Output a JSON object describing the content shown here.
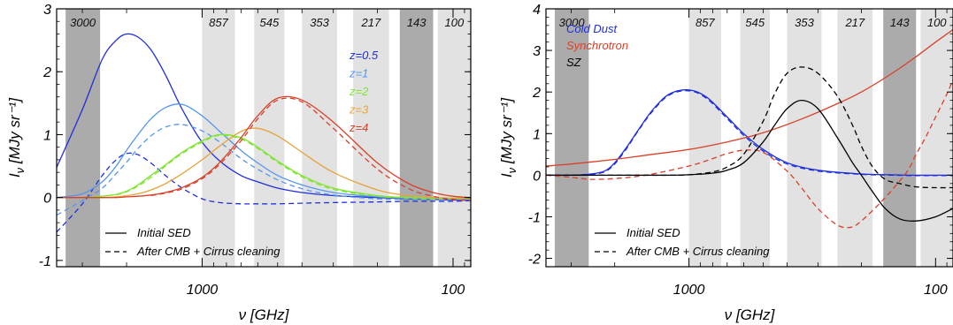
{
  "figure": {
    "band_labels": [
      "3000",
      "857",
      "545",
      "353",
      "217",
      "143",
      "100"
    ],
    "band_shading": [
      "dark",
      "light",
      "light",
      "light",
      "light",
      "dark",
      "light"
    ],
    "colors": {
      "dark_band": "#ababab",
      "light_band": "#e2e2e2"
    }
  },
  "chart_data": [
    {
      "type": "line",
      "x_scale": "log-reversed",
      "xlim": [
        3800,
        85
      ],
      "ylim": [
        -1.1,
        3.0
      ],
      "xlabel": "ν [GHz]",
      "ylabel": "I_ν [MJy sr⁻¹]",
      "xticks": [
        {
          "x": 1000,
          "label": "1000"
        },
        {
          "x": 100,
          "label": "100"
        }
      ],
      "yticks": [
        {
          "y": -1,
          "label": "-1"
        },
        {
          "y": 0,
          "label": "0"
        },
        {
          "y": 1,
          "label": "1"
        },
        {
          "y": 2,
          "label": "2"
        },
        {
          "y": 3,
          "label": "3"
        }
      ],
      "bands": [
        {
          "label": "3000",
          "from": 3500,
          "to": 2550
        },
        {
          "label": "857",
          "from": 1000,
          "to": 740
        },
        {
          "label": "545",
          "from": 620,
          "to": 470
        },
        {
          "label": "353",
          "from": 400,
          "to": 290
        },
        {
          "label": "217",
          "from": 250,
          "to": 180
        },
        {
          "label": "143",
          "from": 163,
          "to": 120
        },
        {
          "label": "100",
          "from": 115,
          "to": 85
        }
      ],
      "legend_style": {
        "solid": "Initial SED",
        "dashed": "After CMB + Cirrus cleaning",
        "placement": "bottom-left"
      },
      "legend_series": {
        "placement": "right"
      },
      "series": [
        {
          "name": "z=0.5",
          "color": "#1f2ee0",
          "style": "solid",
          "x": [
            3800,
            3000,
            2500,
            2200,
            2000,
            1800,
            1600,
            1400,
            1200,
            1000,
            850,
            700,
            600,
            500,
            400,
            300,
            200,
            150,
            120,
            100,
            85
          ],
          "values": [
            0.48,
            1.4,
            2.2,
            2.5,
            2.6,
            2.55,
            2.35,
            1.95,
            1.4,
            0.88,
            0.58,
            0.35,
            0.25,
            0.15,
            0.08,
            0.03,
            0.0,
            -0.02,
            -0.03,
            -0.04,
            -0.04
          ]
        },
        {
          "name": "",
          "color": "#1f2ee0",
          "style": "dashed",
          "x": [
            3800,
            3000,
            2500,
            2200,
            2000,
            1800,
            1600,
            1400,
            1200,
            1000,
            850,
            700,
            600,
            500,
            400,
            300,
            200,
            150,
            120,
            100,
            85
          ],
          "values": [
            -0.55,
            -0.1,
            0.35,
            0.6,
            0.7,
            0.68,
            0.55,
            0.35,
            0.15,
            -0.02,
            -0.08,
            -0.1,
            -0.1,
            -0.1,
            -0.09,
            -0.08,
            -0.07,
            -0.06,
            -0.06,
            -0.06,
            -0.05
          ]
        },
        {
          "name": "z=1",
          "color": "#5596ee",
          "style": "solid",
          "x": [
            3800,
            3000,
            2500,
            2200,
            2000,
            1800,
            1600,
            1400,
            1200,
            1000,
            850,
            700,
            600,
            500,
            400,
            300,
            200,
            150,
            120,
            100,
            85
          ],
          "values": [
            0.0,
            0.06,
            0.25,
            0.5,
            0.75,
            1.0,
            1.25,
            1.43,
            1.48,
            1.3,
            1.05,
            0.75,
            0.55,
            0.35,
            0.2,
            0.08,
            0.01,
            -0.01,
            -0.02,
            -0.02,
            -0.02
          ]
        },
        {
          "name": "",
          "color": "#5596ee",
          "style": "dashed",
          "x": [
            3800,
            3000,
            2500,
            2200,
            2000,
            1800,
            1600,
            1400,
            1200,
            1000,
            850,
            700,
            600,
            500,
            400,
            300,
            200,
            150,
            120,
            100,
            85
          ],
          "values": [
            -0.28,
            -0.05,
            0.15,
            0.38,
            0.56,
            0.78,
            0.98,
            1.12,
            1.16,
            1.06,
            0.88,
            0.62,
            0.45,
            0.28,
            0.14,
            0.04,
            -0.02,
            -0.03,
            -0.03,
            -0.03,
            -0.03
          ]
        },
        {
          "name": "z=2",
          "color": "#7ee62e",
          "style": "solid",
          "x": [
            3800,
            3000,
            2500,
            2200,
            2000,
            1800,
            1600,
            1400,
            1200,
            1000,
            850,
            700,
            600,
            500,
            400,
            300,
            200,
            150,
            120,
            100,
            85
          ],
          "values": [
            0.0,
            0.0,
            0.02,
            0.05,
            0.1,
            0.2,
            0.35,
            0.52,
            0.72,
            0.9,
            1.0,
            0.95,
            0.8,
            0.58,
            0.35,
            0.15,
            0.03,
            0.0,
            -0.01,
            -0.01,
            -0.01
          ]
        },
        {
          "name": "",
          "color": "#7ee62e",
          "style": "dashed",
          "x": [
            2200,
            2000,
            1800,
            1600,
            1400,
            1200,
            1000,
            850,
            700,
            600,
            500,
            400,
            300,
            200,
            150,
            120,
            100,
            85
          ],
          "values": [
            0.04,
            0.09,
            0.18,
            0.32,
            0.5,
            0.7,
            0.88,
            0.99,
            0.93,
            0.78,
            0.56,
            0.33,
            0.13,
            0.02,
            -0.01,
            -0.02,
            -0.02,
            -0.02
          ]
        },
        {
          "name": "z=3",
          "color": "#e8a33a",
          "style": "solid",
          "x": [
            3800,
            3000,
            2500,
            2200,
            2000,
            1800,
            1600,
            1400,
            1200,
            1000,
            850,
            700,
            600,
            500,
            400,
            300,
            200,
            150,
            120,
            100,
            85
          ],
          "values": [
            0.0,
            0.0,
            0.0,
            0.01,
            0.03,
            0.06,
            0.12,
            0.22,
            0.38,
            0.6,
            0.82,
            1.05,
            1.1,
            0.98,
            0.72,
            0.4,
            0.12,
            0.03,
            0.0,
            -0.01,
            -0.01
          ]
        },
        {
          "name": "z=4",
          "color": "#d8412a",
          "style": "solid",
          "x": [
            3800,
            3000,
            2500,
            2200,
            2000,
            1800,
            1600,
            1400,
            1200,
            1000,
            850,
            700,
            600,
            500,
            400,
            300,
            200,
            150,
            120,
            100,
            85
          ],
          "values": [
            0.0,
            0.0,
            0.0,
            0.0,
            0.01,
            0.02,
            0.04,
            0.08,
            0.16,
            0.32,
            0.56,
            0.95,
            1.3,
            1.58,
            1.55,
            1.2,
            0.55,
            0.22,
            0.08,
            0.02,
            0.0
          ]
        },
        {
          "name": "",
          "color": "#d8412a",
          "style": "dashed",
          "x": [
            1600,
            1400,
            1200,
            1000,
            850,
            700,
            600,
            500,
            400,
            300,
            200,
            150,
            120,
            100,
            85
          ],
          "values": [
            0.03,
            0.07,
            0.14,
            0.3,
            0.53,
            0.9,
            1.25,
            1.55,
            1.52,
            1.1,
            0.45,
            0.14,
            0.02,
            -0.03,
            -0.05
          ]
        }
      ]
    },
    {
      "type": "line",
      "x_scale": "log-reversed",
      "xlim": [
        3800,
        85
      ],
      "ylim": [
        -2.2,
        4.0
      ],
      "xlabel": "ν [GHz]",
      "ylabel": "I_ν [MJy sr⁻¹]",
      "xticks": [
        {
          "x": 1000,
          "label": "1000"
        },
        {
          "x": 100,
          "label": "100"
        }
      ],
      "yticks": [
        {
          "y": -2,
          "label": "-2"
        },
        {
          "y": -1,
          "label": "-1"
        },
        {
          "y": 0,
          "label": "0"
        },
        {
          "y": 1,
          "label": "1"
        },
        {
          "y": 2,
          "label": "2"
        },
        {
          "y": 3,
          "label": "3"
        },
        {
          "y": 4,
          "label": "4"
        }
      ],
      "bands": [
        {
          "label": "3000",
          "from": 3500,
          "to": 2550
        },
        {
          "label": "857",
          "from": 1000,
          "to": 740
        },
        {
          "label": "545",
          "from": 620,
          "to": 470
        },
        {
          "label": "353",
          "from": 400,
          "to": 290
        },
        {
          "label": "217",
          "from": 250,
          "to": 180
        },
        {
          "label": "143",
          "from": 163,
          "to": 120
        },
        {
          "label": "100",
          "from": 115,
          "to": 85
        }
      ],
      "legend_style": {
        "solid": "Initial SED",
        "dashed": "After CMB + Cirrus cleaning",
        "placement": "bottom-left"
      },
      "legend_series": {
        "placement": "top-left"
      },
      "series": [
        {
          "name": "Cold Dust",
          "color": "#1f2ee0",
          "style": "solid",
          "x": [
            3800,
            3000,
            2500,
            2200,
            2000,
            1800,
            1600,
            1400,
            1200,
            1000,
            850,
            700,
            600,
            500,
            400,
            300,
            200,
            150,
            120,
            100,
            85
          ],
          "values": [
            0.0,
            0.0,
            0.03,
            0.1,
            0.3,
            0.65,
            1.1,
            1.58,
            1.95,
            2.05,
            1.88,
            1.4,
            1.0,
            0.62,
            0.3,
            0.12,
            0.03,
            0.01,
            0.0,
            0.0,
            0.0
          ]
        },
        {
          "name": "",
          "color": "#1f2ee0",
          "style": "dashed",
          "x": [
            3800,
            3000,
            2500,
            2200,
            2000,
            1800,
            1600,
            1400,
            1200,
            1000,
            850,
            700,
            600,
            500,
            400,
            300,
            200,
            150,
            120,
            100,
            85
          ],
          "values": [
            0.0,
            0.0,
            0.02,
            0.08,
            0.27,
            0.62,
            1.08,
            1.55,
            1.93,
            2.03,
            1.85,
            1.36,
            0.96,
            0.58,
            0.27,
            0.1,
            0.02,
            0.0,
            -0.01,
            -0.01,
            -0.01
          ]
        },
        {
          "name": "Synchrotron",
          "color": "#d8412a",
          "style": "solid",
          "x": [
            3800,
            3000,
            2000,
            1500,
            1000,
            700,
            500,
            350,
            250,
            200,
            150,
            120,
            100,
            85
          ],
          "values": [
            0.22,
            0.27,
            0.38,
            0.48,
            0.62,
            0.8,
            1.02,
            1.35,
            1.72,
            2.0,
            2.45,
            2.85,
            3.2,
            3.5
          ]
        },
        {
          "name": "",
          "color": "#d8412a",
          "style": "dashed",
          "x": [
            3800,
            3000,
            2500,
            2000,
            1500,
            1000,
            800,
            700,
            600,
            500,
            400,
            350,
            300,
            250,
            220,
            200,
            170,
            150,
            130,
            120,
            110,
            100,
            90,
            85
          ],
          "values": [
            0.0,
            -0.05,
            -0.1,
            -0.08,
            0.0,
            0.22,
            0.4,
            0.52,
            0.6,
            0.55,
            0.1,
            -0.3,
            -0.8,
            -1.2,
            -1.25,
            -1.1,
            -0.7,
            -0.35,
            0.1,
            0.5,
            0.9,
            1.4,
            1.95,
            2.3
          ]
        },
        {
          "name": "SZ",
          "color": "#000000",
          "style": "solid",
          "x": [
            3800,
            2000,
            1200,
            1000,
            800,
            700,
            600,
            500,
            450,
            400,
            350,
            300,
            250,
            217,
            200,
            180,
            160,
            140,
            120,
            100,
            85
          ],
          "values": [
            0.0,
            0.0,
            0.0,
            0.01,
            0.05,
            0.12,
            0.3,
            0.8,
            1.2,
            1.6,
            1.8,
            1.6,
            0.9,
            0.3,
            0.0,
            -0.4,
            -0.8,
            -1.05,
            -1.1,
            -1.0,
            -0.8
          ]
        },
        {
          "name": "",
          "color": "#000000",
          "style": "dashed",
          "x": [
            3800,
            2000,
            1200,
            1000,
            800,
            700,
            600,
            500,
            450,
            400,
            350,
            300,
            250,
            217,
            200,
            180,
            160,
            140,
            120,
            100,
            85
          ],
          "values": [
            0.0,
            0.0,
            0.0,
            0.01,
            0.08,
            0.2,
            0.5,
            1.3,
            1.95,
            2.45,
            2.6,
            2.45,
            1.9,
            1.2,
            0.7,
            0.2,
            -0.1,
            -0.2,
            -0.28,
            -0.3,
            -0.3
          ]
        }
      ]
    }
  ]
}
